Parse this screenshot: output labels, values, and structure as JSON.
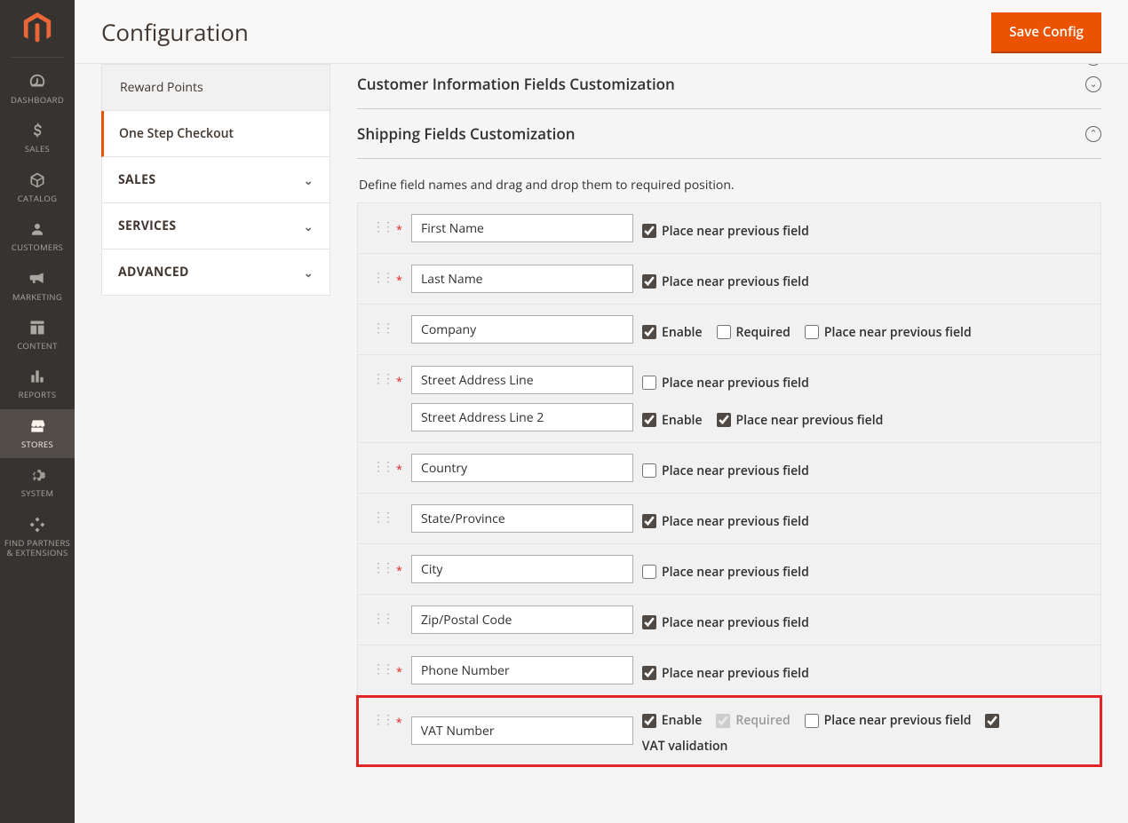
{
  "header": {
    "title": "Configuration",
    "save_label": "Save Config"
  },
  "nav": {
    "items": [
      {
        "label": "DASHBOARD"
      },
      {
        "label": "SALES"
      },
      {
        "label": "CATALOG"
      },
      {
        "label": "CUSTOMERS"
      },
      {
        "label": "MARKETING"
      },
      {
        "label": "CONTENT"
      },
      {
        "label": "REPORTS"
      },
      {
        "label": "STORES"
      },
      {
        "label": "SYSTEM"
      },
      {
        "label": "FIND PARTNERS & EXTENSIONS"
      }
    ]
  },
  "sidebar": {
    "reward_points": "Reward Points",
    "one_step_checkout": "One Step Checkout",
    "sales": "SALES",
    "services": "SERVICES",
    "advanced": "ADVANCED"
  },
  "sections": {
    "customer_info": "Customer Information Fields Customization",
    "shipping": "Shipping Fields Customization",
    "shipping_desc": "Define field names and drag and drop them to required position."
  },
  "labels": {
    "place_near": "Place near previous field",
    "enable": "Enable",
    "required": "Required",
    "vat_validation": "VAT validation"
  },
  "fields": [
    {
      "name": "First Name",
      "required": true,
      "checks": [
        {
          "type": "place_near",
          "checked": true
        }
      ]
    },
    {
      "name": "Last Name",
      "required": true,
      "checks": [
        {
          "type": "place_near",
          "checked": true
        }
      ]
    },
    {
      "name": "Company",
      "required": false,
      "checks": [
        {
          "type": "enable",
          "checked": true
        },
        {
          "type": "required",
          "checked": false
        },
        {
          "type": "place_near",
          "checked": false
        }
      ]
    },
    {
      "name": "Street Address Line",
      "required": true,
      "extra_line": {
        "name": "Street Address Line 2",
        "checks": [
          {
            "type": "enable",
            "checked": true
          },
          {
            "type": "place_near",
            "checked": true
          }
        ]
      },
      "checks": [
        {
          "type": "place_near",
          "checked": false
        }
      ]
    },
    {
      "name": "Country",
      "required": true,
      "checks": [
        {
          "type": "place_near",
          "checked": false
        }
      ]
    },
    {
      "name": "State/Province",
      "required": false,
      "checks": [
        {
          "type": "place_near",
          "checked": true
        }
      ]
    },
    {
      "name": "City",
      "required": true,
      "checks": [
        {
          "type": "place_near",
          "checked": false
        }
      ]
    },
    {
      "name": "Zip/Postal Code",
      "required": false,
      "checks": [
        {
          "type": "place_near",
          "checked": true
        }
      ]
    },
    {
      "name": "Phone Number",
      "required": true,
      "checks": [
        {
          "type": "place_near",
          "checked": true
        }
      ]
    },
    {
      "name": "VAT Number",
      "required": true,
      "highlighted": true,
      "checks": [
        {
          "type": "enable",
          "checked": true
        },
        {
          "type": "required",
          "checked": true,
          "disabled": true
        },
        {
          "type": "place_near",
          "checked": false
        },
        {
          "type": "vat",
          "checked": true
        }
      ]
    }
  ],
  "colors": {
    "accent": "#eb5202",
    "highlight": "#e22626",
    "nav_bg": "#373330",
    "nav_active": "#524d49"
  }
}
